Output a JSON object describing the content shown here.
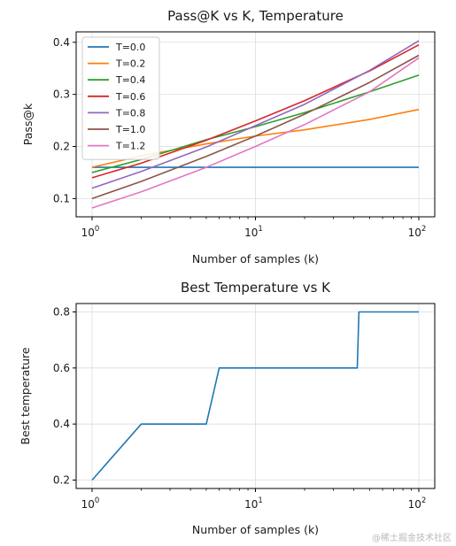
{
  "colors": {
    "series": [
      "#1f77b4",
      "#ff7f0e",
      "#2ca02c",
      "#d62728",
      "#9467bd",
      "#8c564b",
      "#e377c2"
    ],
    "grid": "#dddddd",
    "axis": "#000000"
  },
  "watermark": "@稀土掘金技术社区",
  "chart_data": [
    {
      "type": "line",
      "title": "Pass@K vs K, Temperature",
      "xlabel": "Number of samples (k)",
      "ylabel": "Pass@k",
      "xscale": "log",
      "xlim": [
        1,
        100
      ],
      "ylim": [
        0.065,
        0.42
      ],
      "xticks": [
        {
          "base": "10",
          "exp": "0"
        },
        {
          "base": "10",
          "exp": "1"
        },
        {
          "base": "10",
          "exp": "2"
        }
      ],
      "yticks": [
        "0.1",
        "0.2",
        "0.3",
        "0.4"
      ],
      "grid": true,
      "legend": "upper-left",
      "series": [
        {
          "name": "T=0.0",
          "x": [
            1,
            2,
            5,
            10,
            20,
            50,
            100
          ],
          "values": [
            0.16,
            0.16,
            0.16,
            0.16,
            0.16,
            0.16,
            0.16
          ]
        },
        {
          "name": "T=0.2",
          "x": [
            1,
            2,
            5,
            10,
            20,
            50,
            100
          ],
          "values": [
            0.16,
            0.182,
            0.205,
            0.22,
            0.232,
            0.252,
            0.271
          ]
        },
        {
          "name": "T=0.4",
          "x": [
            1,
            2,
            5,
            10,
            20,
            50,
            100
          ],
          "values": [
            0.15,
            0.175,
            0.213,
            0.238,
            0.265,
            0.305,
            0.337
          ]
        },
        {
          "name": "T=0.6",
          "x": [
            1,
            2,
            5,
            10,
            20,
            50,
            100
          ],
          "values": [
            0.14,
            0.168,
            0.212,
            0.249,
            0.288,
            0.345,
            0.395
          ]
        },
        {
          "name": "T=0.8",
          "x": [
            1,
            2,
            5,
            10,
            20,
            50,
            100
          ],
          "values": [
            0.12,
            0.152,
            0.199,
            0.24,
            0.281,
            0.346,
            0.403
          ]
        },
        {
          "name": "T=1.0",
          "x": [
            1,
            2,
            5,
            10,
            20,
            50,
            100
          ],
          "values": [
            0.1,
            0.133,
            0.181,
            0.22,
            0.262,
            0.323,
            0.375
          ]
        },
        {
          "name": "T=1.2",
          "x": [
            1,
            2,
            5,
            10,
            20,
            50,
            100
          ],
          "values": [
            0.082,
            0.113,
            0.16,
            0.2,
            0.242,
            0.305,
            0.37
          ]
        }
      ]
    },
    {
      "type": "line",
      "title": "Best Temperature vs K",
      "xlabel": "Number of samples (k)",
      "ylabel": "Best temperature",
      "xscale": "log",
      "xlim": [
        1,
        100
      ],
      "ylim": [
        0.17,
        0.83
      ],
      "xticks": [
        {
          "base": "10",
          "exp": "0"
        },
        {
          "base": "10",
          "exp": "1"
        },
        {
          "base": "10",
          "exp": "2"
        }
      ],
      "yticks": [
        "0.2",
        "0.4",
        "0.6",
        "0.8"
      ],
      "grid": true,
      "series": [
        {
          "x": [
            1,
            2,
            5,
            6,
            42,
            43,
            100
          ],
          "values": [
            0.2,
            0.4,
            0.4,
            0.6,
            0.6,
            0.8,
            0.8
          ]
        }
      ]
    }
  ]
}
